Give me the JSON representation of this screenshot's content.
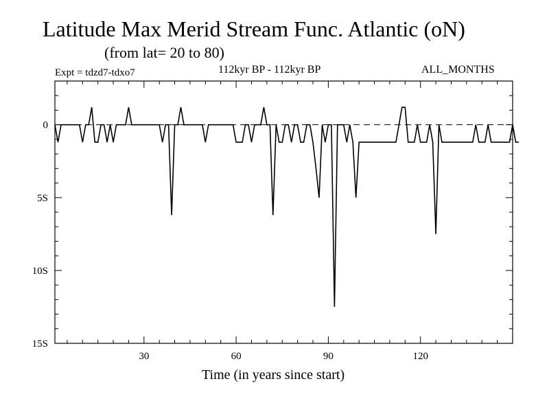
{
  "chart_data": {
    "type": "line",
    "title": "Latitude Max Merid Stream Func. Atlantic (oN)",
    "subtitle": "(from lat= 20 to 80)",
    "experiment": "Expt = tdzd7-tdxo7",
    "period": "112kyr BP - 112kyr BP",
    "months": "ALL_MONTHS",
    "xlabel": "Time (in years since start)",
    "ylabel": "",
    "xlim": [
      1,
      150
    ],
    "ylim": [
      -15,
      3
    ],
    "x_ticks": [
      30,
      60,
      90,
      120
    ],
    "x_tick_labels": [
      "30",
      "60",
      "90",
      "120"
    ],
    "y_ticks": [
      0,
      -5,
      -10,
      -15
    ],
    "y_tick_labels": [
      "0",
      "5S",
      "10S",
      "15S"
    ],
    "reference_line": 0,
    "series": [
      {
        "name": "Latitude Max Merid Stream Func.",
        "values": [
          0,
          -1.2,
          0,
          0,
          0,
          0,
          0,
          0,
          0,
          -1.2,
          0,
          0,
          1.2,
          -1.2,
          -1.2,
          0,
          0,
          -1.2,
          0,
          -1.2,
          0,
          0,
          0,
          0,
          1.2,
          0,
          0,
          0,
          0,
          0,
          0,
          0,
          0,
          0,
          0,
          -1.2,
          0,
          0,
          -6.2,
          0,
          0,
          1.2,
          0,
          0,
          0,
          0,
          0,
          0,
          0,
          -1.2,
          0,
          0,
          0,
          0,
          0,
          0,
          0,
          0,
          0,
          -1.2,
          -1.2,
          -1.2,
          0,
          0,
          -1.2,
          0,
          0,
          0,
          1.2,
          0,
          0,
          -6.2,
          0,
          -1.2,
          -1.2,
          0,
          0,
          -1.2,
          0,
          0,
          -1.2,
          -1.2,
          0,
          0,
          -1.2,
          -3,
          -5,
          0,
          -1.2,
          0,
          0,
          -12.5,
          0,
          0,
          0,
          -1.2,
          0,
          -1.2,
          -5,
          -1.2,
          -1.2,
          -1.2,
          -1.2,
          -1.2,
          -1.2,
          -1.2,
          -1.2,
          -1.2,
          -1.2,
          -1.2,
          -1.2,
          -1.2,
          0,
          1.2,
          1.2,
          -1.2,
          -1.2,
          -1.2,
          0,
          -1.2,
          -1.2,
          -1.2,
          0,
          -1.2,
          -7.5,
          0,
          -1.2,
          -1.2,
          -1.2,
          -1.2,
          -1.2,
          -1.2,
          -1.2,
          -1.2,
          -1.2,
          -1.2,
          -1.2,
          0,
          -1.2,
          -1.2,
          -1.2,
          0,
          -1.2,
          -1.2,
          -1.2,
          -1.2,
          -1.2,
          -1.2,
          -1.2,
          0,
          -1.2,
          -1.2
        ]
      }
    ]
  }
}
